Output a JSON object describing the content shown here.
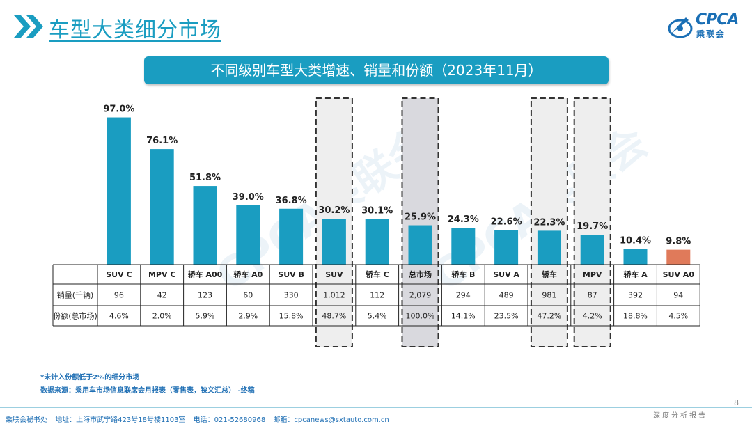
{
  "header": {
    "title": "车型大类细分市场",
    "logo_text": "CPCA",
    "logo_sub": "乘联会"
  },
  "banner": {
    "title": "不同级别车型大类增速、销量和份额（2023年11月）"
  },
  "chart_data": {
    "type": "bar",
    "categories": [
      "SUV C",
      "MPV C",
      "轿车 A00",
      "轿车 A0",
      "SUV B",
      "SUV",
      "轿车 C",
      "总市场",
      "轿车 B",
      "SUV A",
      "轿车",
      "MPV",
      "轿车 A",
      "SUV A0"
    ],
    "growth_labels": [
      "97.0%",
      "76.1%",
      "51.8%",
      "39.0%",
      "36.8%",
      "30.2%",
      "30.1%",
      "25.9%",
      "24.3%",
      "22.6%",
      "22.3%",
      "19.7%",
      "10.4%",
      "9.8%"
    ],
    "values": [
      97.0,
      76.1,
      51.8,
      39.0,
      36.8,
      30.2,
      30.1,
      25.9,
      24.3,
      22.6,
      22.3,
      19.7,
      10.4,
      9.8
    ],
    "ylim": [
      0,
      100
    ],
    "bar_colors": [
      "#1a9dc1",
      "#1a9dc1",
      "#1a9dc1",
      "#1a9dc1",
      "#1a9dc1",
      "#1a9dc1",
      "#1a9dc1",
      "#1a9dc1",
      "#1a9dc1",
      "#1a9dc1",
      "#1a9dc1",
      "#1a9dc1",
      "#1a9dc1",
      "#e07a5a"
    ],
    "highlighted_dashed": [
      "SUV",
      "轿车",
      "MPV"
    ],
    "highlighted_filled": [
      "总市场"
    ],
    "table": {
      "row_labels": [
        "销量(千辆)",
        "份额(总市场)"
      ],
      "sales": [
        "96",
        "42",
        "123",
        "60",
        "330",
        "1,012",
        "112",
        "2,079",
        "294",
        "489",
        "981",
        "87",
        "392",
        "94"
      ],
      "share": [
        "4.6%",
        "2.0%",
        "5.9%",
        "2.9%",
        "15.8%",
        "48.7%",
        "5.4%",
        "100.0%",
        "14.1%",
        "23.5%",
        "47.2%",
        "4.2%",
        "18.8%",
        "4.5%"
      ]
    }
  },
  "notes": {
    "note1": "*未计入份额低于2%的细分市场",
    "note2": "数据来源：乘用车市场信息联席会月报表（零售表，狭义汇总） -终稿"
  },
  "footer": {
    "org": "乘联会秘书处",
    "address": "地址：上海市武宁路423号18号楼1103室",
    "phone": "电话：021-52680968",
    "email": "邮箱：cpcanews@sxtauto.com.cn",
    "report_label": "深度分析报告",
    "page_number": "8"
  },
  "colors": {
    "accent": "#1a9dc1",
    "highlight_bar": "#e07a5a",
    "footer_text": "#1f6fb4"
  }
}
